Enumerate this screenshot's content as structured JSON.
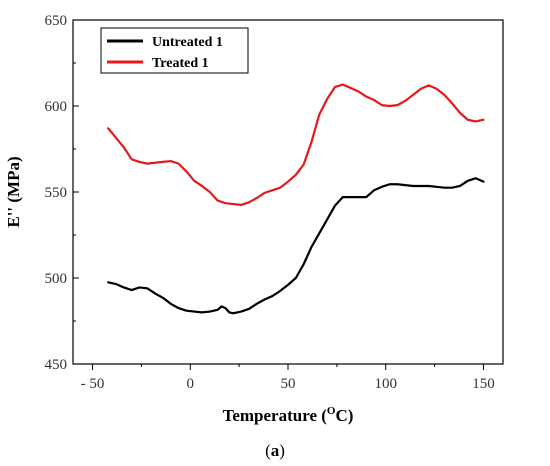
{
  "chart_data": {
    "type": "line",
    "xlabel": "Temperature (",
    "xlabel_sup": "O",
    "xlabel_unit": "C)",
    "ylabel": "E'' (MPa)",
    "caption_open": "(",
    "caption_letter": "a",
    "caption_close": ")",
    "xlim": [
      -60,
      160
    ],
    "ylim": [
      450,
      650
    ],
    "x_ticks": [
      -50,
      0,
      50,
      100,
      150
    ],
    "x_tick_labels": [
      "- 50",
      "0",
      "50",
      "100",
      "150"
    ],
    "y_ticks": [
      450,
      500,
      550,
      600,
      650
    ],
    "grid": false,
    "legend_position": "top-left",
    "series": [
      {
        "name": "Untreated 1",
        "color": "#000000",
        "x": [
          -42,
          -38,
          -34,
          -30,
          -26,
          -22,
          -18,
          -14,
          -10,
          -6,
          -2,
          2,
          6,
          10,
          14,
          16,
          18,
          20,
          22,
          24,
          26,
          30,
          34,
          38,
          42,
          46,
          50,
          54,
          58,
          62,
          66,
          70,
          74,
          78,
          82,
          86,
          90,
          94,
          98,
          102,
          106,
          110,
          114,
          118,
          122,
          126,
          130,
          134,
          138,
          142,
          146,
          150
        ],
        "values": [
          497.5,
          496.5,
          494.5,
          493,
          494.5,
          494,
          491,
          488.5,
          485,
          482.5,
          481,
          480.5,
          480,
          480.5,
          481.5,
          483.5,
          482.5,
          480,
          479.5,
          480,
          480.5,
          482,
          485,
          487.5,
          489.5,
          492.5,
          496,
          500,
          508,
          518,
          526,
          534,
          542,
          547,
          547,
          547,
          547,
          551,
          553,
          554.5,
          554.5,
          554,
          553.5,
          553.5,
          553.5,
          553,
          552.5,
          552.5,
          553.5,
          556.5,
          558,
          556
        ]
      },
      {
        "name": "Treated 1",
        "color": "#e41a1c",
        "x": [
          -42,
          -38,
          -34,
          -30,
          -26,
          -22,
          -18,
          -14,
          -10,
          -6,
          -2,
          2,
          6,
          10,
          14,
          18,
          22,
          26,
          30,
          34,
          38,
          42,
          46,
          50,
          54,
          58,
          62,
          66,
          70,
          74,
          78,
          82,
          86,
          90,
          94,
          98,
          102,
          106,
          110,
          114,
          118,
          122,
          126,
          130,
          134,
          138,
          142,
          146,
          150
        ],
        "values": [
          587,
          581.5,
          576,
          569,
          567.5,
          566.5,
          567,
          567.5,
          568,
          566.5,
          562,
          556.5,
          553.5,
          550,
          545,
          543.5,
          543,
          542.5,
          544,
          546.5,
          549.5,
          551,
          552.5,
          556,
          560,
          566,
          579,
          595,
          604,
          611,
          612.5,
          610.5,
          608.5,
          605.5,
          603.5,
          600.5,
          600,
          600.5,
          603,
          606.5,
          610,
          612,
          610,
          606.5,
          601.5,
          596,
          592,
          591,
          592
        ]
      }
    ]
  }
}
